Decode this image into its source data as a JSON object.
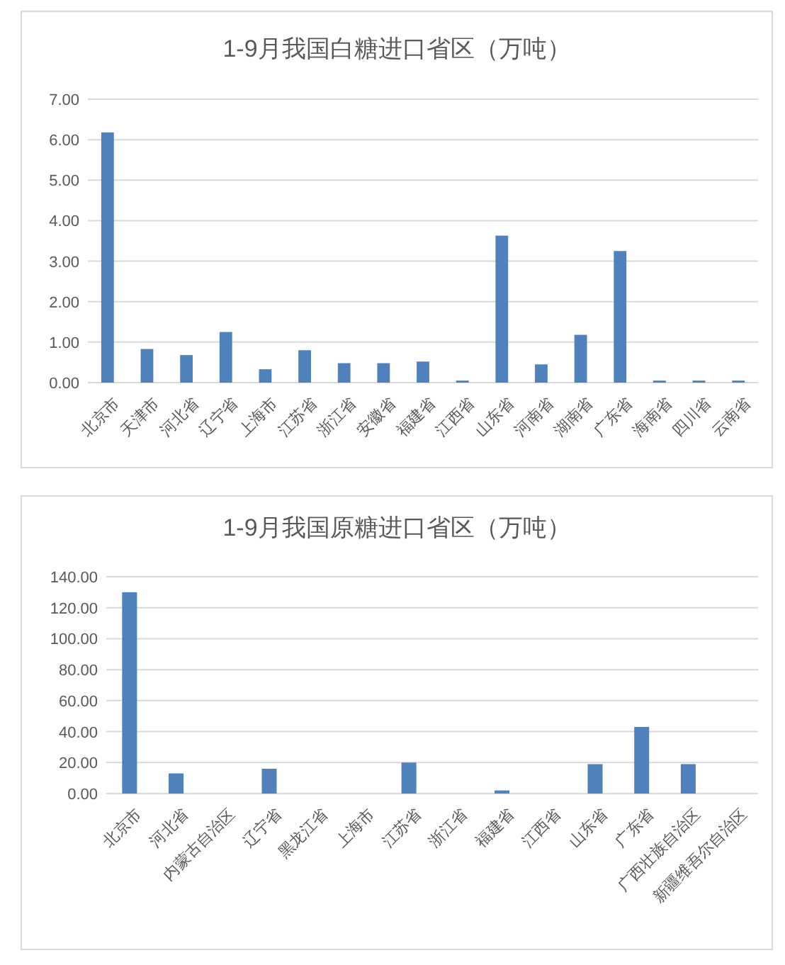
{
  "chart_data": [
    {
      "type": "bar",
      "title": "1-9月我国白糖进口省区（万吨）",
      "categories": [
        "北京市",
        "天津市",
        "河北省",
        "辽宁省",
        "上海市",
        "江苏省",
        "浙江省",
        "安徽省",
        "福建省",
        "江西省",
        "山东省",
        "河南省",
        "湖南省",
        "广东省",
        "海南省",
        "四川省",
        "云南省"
      ],
      "series": [
        {
          "color": "#4f81bd",
          "values": [
            6.18,
            0.83,
            0.68,
            1.25,
            0.33,
            0.8,
            0.48,
            0.48,
            0.52,
            0.05,
            3.63,
            0.45,
            1.18,
            3.25,
            0.05,
            0.05,
            0.05
          ]
        }
      ],
      "ylim": [
        0,
        7
      ],
      "yticks": [
        {
          "value": 0,
          "label": "0.00"
        },
        {
          "value": 1,
          "label": "1.00"
        },
        {
          "value": 2,
          "label": "2.00"
        },
        {
          "value": 3,
          "label": "3.00"
        },
        {
          "value": 4,
          "label": "4.00"
        },
        {
          "value": 5,
          "label": "5.00"
        },
        {
          "value": 6,
          "label": "6.00"
        },
        {
          "value": 7,
          "label": "7.00"
        }
      ],
      "grid": "y"
    },
    {
      "type": "bar",
      "title": "1-9月我国原糖进口省区（万吨）",
      "categories": [
        "北京市",
        "河北省",
        "内蒙古自治区",
        "辽宁省",
        "黑龙江省",
        "上海市",
        "江苏省",
        "浙江省",
        "福建省",
        "江西省",
        "山东省",
        "广东省",
        "广西壮族自治区",
        "新疆维吾尔自治区"
      ],
      "series": [
        {
          "color": "#4f81bd",
          "values": [
            130,
            13,
            0,
            16,
            0,
            0,
            20,
            0,
            2,
            0,
            19,
            43,
            19,
            0
          ]
        }
      ],
      "ylim": [
        0,
        140
      ],
      "yticks": [
        {
          "value": 0,
          "label": "0.00"
        },
        {
          "value": 20,
          "label": "20.00"
        },
        {
          "value": 40,
          "label": "40.00"
        },
        {
          "value": 60,
          "label": "60.00"
        },
        {
          "value": 80,
          "label": "80.00"
        },
        {
          "value": 100,
          "label": "100.00"
        },
        {
          "value": 120,
          "label": "120.00"
        },
        {
          "value": 140,
          "label": "140.00"
        }
      ],
      "grid": "y"
    }
  ]
}
